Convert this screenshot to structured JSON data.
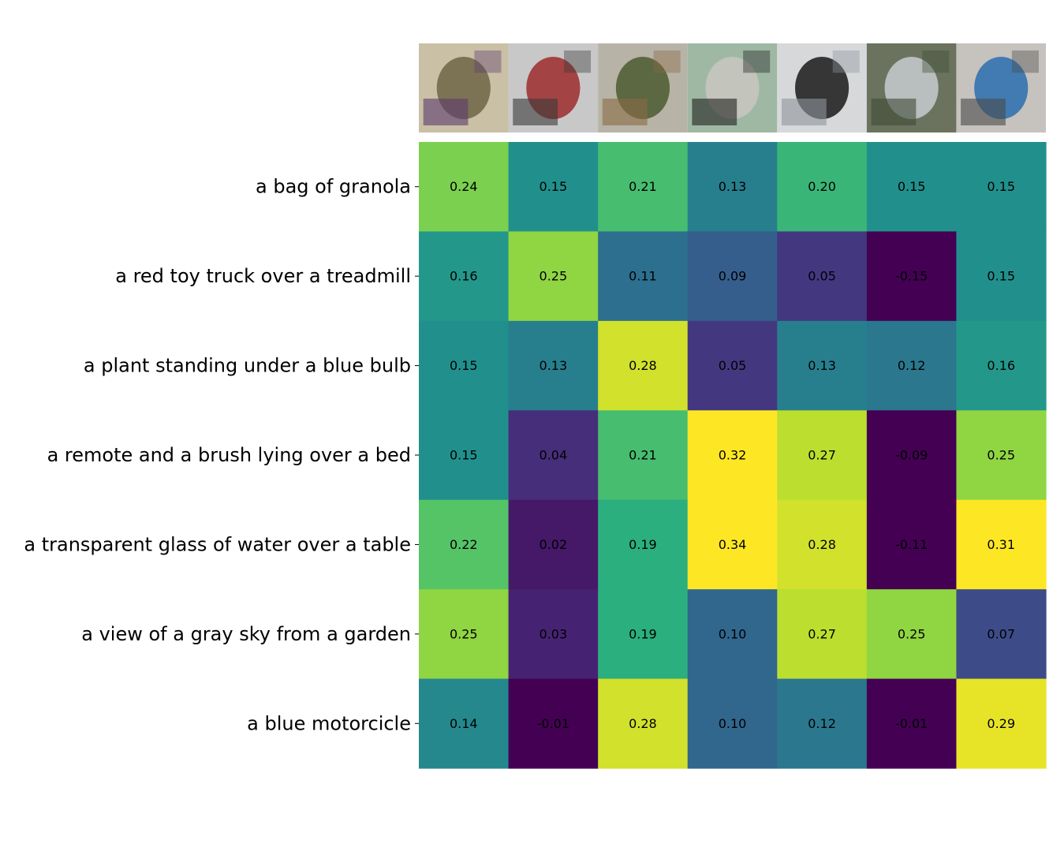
{
  "chart_data": {
    "type": "heatmap",
    "title": "",
    "xlabel": "",
    "ylabel": "",
    "colormap": "viridis",
    "color_range": [
      0.0,
      0.3
    ],
    "grid": false,
    "legend": "none",
    "columns": [
      {
        "image": "bag of granola photo",
        "palette": [
          "#6f6545",
          "#5e3b6e",
          "#c9c0a6"
        ]
      },
      {
        "image": "red toy truck on treadmill photo",
        "palette": [
          "#9e2b2b",
          "#3a3a3a",
          "#c8c8c8"
        ]
      },
      {
        "image": "plant under blue bulb photo",
        "palette": [
          "#4b5a2f",
          "#8a6a45",
          "#b7b3a6"
        ]
      },
      {
        "image": "remote and brush on bed photo",
        "palette": [
          "#c9c6c0",
          "#1f1f1f",
          "#9fb8a4"
        ]
      },
      {
        "image": "glass of water on table photo",
        "palette": [
          "#1a1a1a",
          "#8f9499",
          "#d6d8da"
        ]
      },
      {
        "image": "gray sky from garden photo",
        "palette": [
          "#c7cbcf",
          "#3d4a35",
          "#6b735e"
        ]
      },
      {
        "image": "blue motorcycle photo",
        "palette": [
          "#2a6fb0",
          "#4a4a4a",
          "#c6c2bd"
        ]
      }
    ],
    "rows": [
      "a bag of granola",
      "a red toy truck over a treadmill",
      "a plant standing under a blue bulb",
      "a remote and a brush lying over a bed",
      "a transparent glass of water over a table",
      "a view of a gray sky from a garden",
      "a blue motorcicle"
    ],
    "values": [
      [
        0.24,
        0.15,
        0.21,
        0.13,
        0.2,
        0.15,
        0.15
      ],
      [
        0.16,
        0.25,
        0.11,
        0.09,
        0.05,
        -0.15,
        0.15
      ],
      [
        0.15,
        0.13,
        0.28,
        0.05,
        0.13,
        0.12,
        0.16
      ],
      [
        0.15,
        0.04,
        0.21,
        0.32,
        0.27,
        -0.09,
        0.25
      ],
      [
        0.22,
        0.02,
        0.19,
        0.34,
        0.28,
        -0.11,
        0.31
      ],
      [
        0.25,
        0.03,
        0.19,
        0.1,
        0.27,
        0.25,
        0.07
      ],
      [
        0.14,
        -0.01,
        0.28,
        0.1,
        0.12,
        -0.01,
        0.29
      ]
    ],
    "value_labels": [
      [
        "0.24",
        "0.15",
        "0.21",
        "0.13",
        "0.20",
        "0.15",
        "0.15"
      ],
      [
        "0.16",
        "0.25",
        "0.11",
        "0.09",
        "0.05",
        "-0.15",
        "0.15"
      ],
      [
        "0.15",
        "0.13",
        "0.28",
        "0.05",
        "0.13",
        "0.12",
        "0.16"
      ],
      [
        "0.15",
        "0.04",
        "0.21",
        "0.32",
        "0.27",
        "-0.09",
        "0.25"
      ],
      [
        "0.22",
        "0.02",
        "0.19",
        "0.34",
        "0.28",
        "-0.11",
        "0.31"
      ],
      [
        "0.25",
        "0.03",
        "0.19",
        "0.10",
        "0.27",
        "0.25",
        "0.07"
      ],
      [
        "0.14",
        "-0.01",
        "0.28",
        "0.10",
        "0.12",
        "-0.01",
        "0.29"
      ]
    ]
  }
}
